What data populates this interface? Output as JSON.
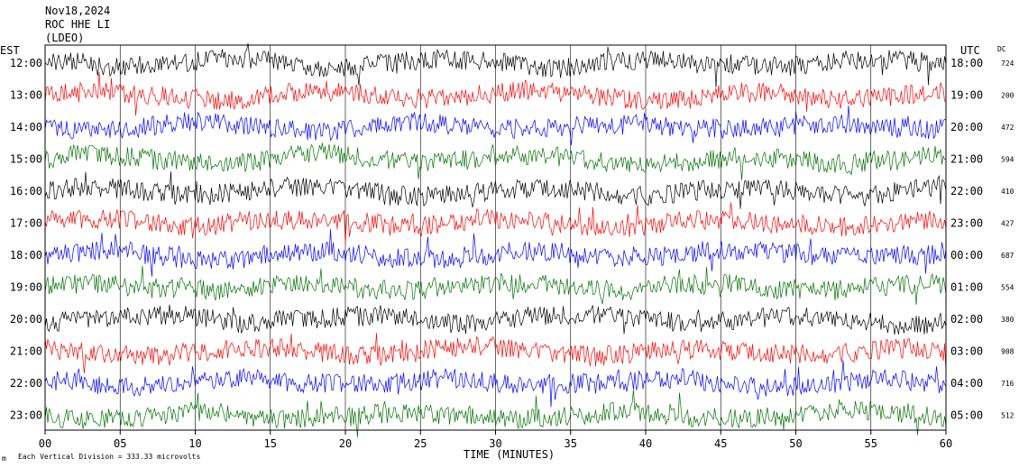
{
  "header": {
    "date": "Nov18,2024",
    "station": "ROC HHE LI",
    "network": "(LDEO)"
  },
  "left_axis_label": "EST",
  "right_axis_label": "UTC",
  "dc_label": "DC",
  "footer": {
    "scale_note": "Each Vertical Division =  333.33 microvolts",
    "mark": "m"
  },
  "colors": {
    "cycle": [
      "#000000",
      "#ff0000",
      "#0000ff",
      "#007000"
    ],
    "axis": "#000000",
    "background": "#ffffff"
  },
  "chart_data": {
    "type": "line",
    "title": "Nov18,2024",
    "xlabel": "TIME (MINUTES)",
    "ylabel": "",
    "xlim": [
      0,
      60
    ],
    "x_ticks": [
      "00",
      "05",
      "10",
      "15",
      "20",
      "25",
      "30",
      "35",
      "40",
      "45",
      "50",
      "55",
      "60"
    ],
    "grid": true,
    "rows": [
      {
        "est": "12:00",
        "utc": "18:00",
        "dc": "724"
      },
      {
        "est": "13:00",
        "utc": "19:00",
        "dc": "200"
      },
      {
        "est": "14:00",
        "utc": "20:00",
        "dc": "472"
      },
      {
        "est": "15:00",
        "utc": "21:00",
        "dc": "594"
      },
      {
        "est": "16:00",
        "utc": "22:00",
        "dc": "410"
      },
      {
        "est": "17:00",
        "utc": "23:00",
        "dc": "427"
      },
      {
        "est": "18:00",
        "utc": "00:00",
        "dc": "687"
      },
      {
        "est": "19:00",
        "utc": "01:00",
        "dc": "554"
      },
      {
        "est": "20:00",
        "utc": "02:00",
        "dc": "380"
      },
      {
        "est": "21:00",
        "utc": "03:00",
        "dc": "908"
      },
      {
        "est": "22:00",
        "utc": "04:00",
        "dc": "716"
      },
      {
        "est": "23:00",
        "utc": "05:00",
        "dc": "512"
      }
    ]
  }
}
